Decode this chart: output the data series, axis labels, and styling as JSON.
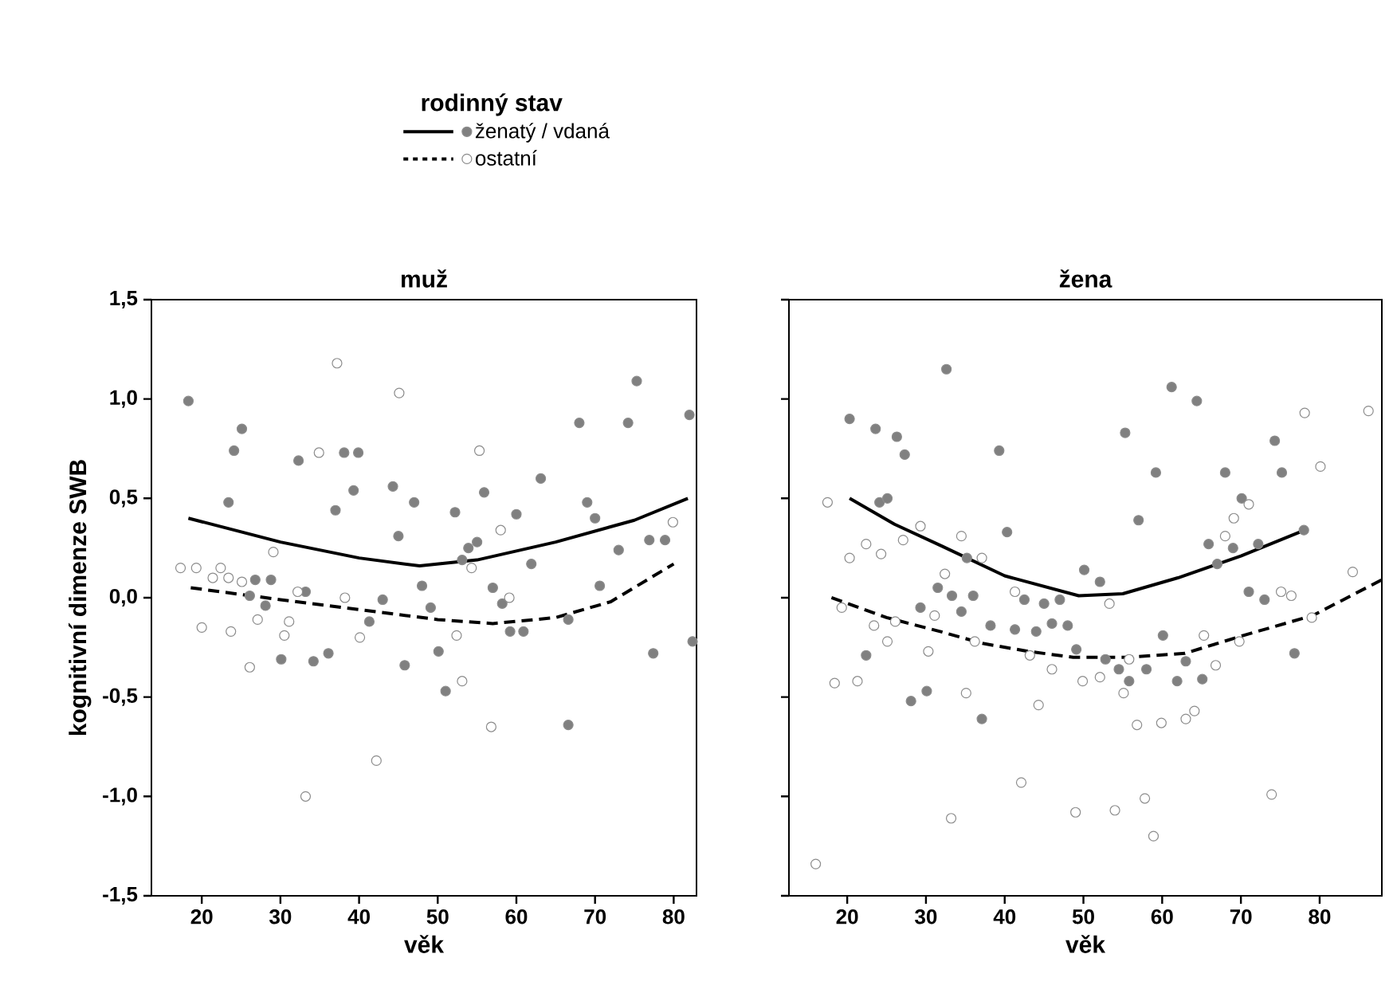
{
  "chart_data": [
    {
      "type": "scatter",
      "title": "muž",
      "xlabel": "věk",
      "ylabel": "kognitivní dimenze SWB",
      "legend_title": "rodinný stav",
      "legend": "top",
      "xlim": [
        13.6,
        82.9
      ],
      "ylim": [
        -1.5,
        1.5
      ],
      "xticks": [
        20,
        30,
        40,
        50,
        60,
        70,
        80
      ],
      "yticks": [
        {
          "value": -1.5,
          "label": "-1,5"
        },
        {
          "value": -1.0,
          "label": "-1,0"
        },
        {
          "value": -0.5,
          "label": "-0,5"
        },
        {
          "value": 0.0,
          "label": "0,0"
        },
        {
          "value": 0.5,
          "label": "0,5"
        },
        {
          "value": 1.0,
          "label": "1,0"
        },
        {
          "value": 1.5,
          "label": "1,5"
        }
      ],
      "series": [
        {
          "name": "ženatý / vdaná",
          "type": "scatter",
          "marker": "circle",
          "color": "#808080",
          "x": [
            18.3,
            25.1,
            24.1,
            32.3,
            38.1,
            39.9,
            39.3,
            23.4,
            37.0,
            44.3,
            47.0,
            52.2,
            55.9,
            63.1,
            60.0,
            68.0,
            74.2,
            75.3,
            82.0,
            69.0,
            70.0,
            45.0,
            55.0,
            53.9,
            53.1,
            61.9,
            73.0,
            76.9,
            78.9,
            26.8,
            28.8,
            26.1,
            28.1,
            33.2,
            43.0,
            41.3,
            48.0,
            49.1,
            57.0,
            58.2,
            59.2,
            60.9,
            70.6,
            66.6,
            82.4,
            30.1,
            34.2,
            36.1,
            45.8,
            50.1,
            51.0,
            66.6,
            77.4
          ],
          "values": [
            0.99,
            0.85,
            0.74,
            0.69,
            0.73,
            0.73,
            0.54,
            0.48,
            0.44,
            0.56,
            0.48,
            0.43,
            0.53,
            0.6,
            0.42,
            0.88,
            0.88,
            1.09,
            0.92,
            0.48,
            0.4,
            0.31,
            0.28,
            0.25,
            0.19,
            0.17,
            0.24,
            0.29,
            0.29,
            0.09,
            0.09,
            0.01,
            -0.04,
            0.03,
            -0.01,
            -0.12,
            0.06,
            -0.05,
            0.05,
            -0.03,
            -0.17,
            -0.17,
            0.06,
            -0.11,
            -0.22,
            -0.31,
            -0.32,
            -0.28,
            -0.34,
            -0.27,
            -0.47,
            -0.64,
            -0.28
          ]
        },
        {
          "name": "ostatní",
          "type": "scatter",
          "marker": "circle",
          "color": "#ffffff",
          "x": [
            37.2,
            45.1,
            34.9,
            55.3,
            58.0,
            79.9,
            29.1,
            17.3,
            19.3,
            22.4,
            21.4,
            23.4,
            25.1,
            38.2,
            32.2,
            54.3,
            59.1,
            20.0,
            23.7,
            27.1,
            31.1,
            30.5,
            40.1,
            52.4,
            26.1,
            53.1,
            56.8,
            42.2,
            33.2
          ],
          "values": [
            1.18,
            1.03,
            0.73,
            0.74,
            0.34,
            0.38,
            0.23,
            0.15,
            0.15,
            0.15,
            0.1,
            0.1,
            0.08,
            0.0,
            0.03,
            0.15,
            0.0,
            -0.15,
            -0.17,
            -0.11,
            -0.12,
            -0.19,
            -0.2,
            -0.19,
            -0.35,
            -0.42,
            -0.65,
            -0.82,
            -1.0
          ]
        },
        {
          "type": "line",
          "line_style": "solid",
          "marker": "none",
          "color": "#000000",
          "x": [
            18.3,
            30,
            40,
            47.7,
            55,
            65,
            75,
            81.8
          ],
          "values": [
            0.4,
            0.28,
            0.2,
            0.16,
            0.19,
            0.28,
            0.39,
            0.5
          ]
        },
        {
          "type": "line",
          "line_style": "dashed",
          "marker": "none",
          "color": "#000000",
          "x": [
            18.6,
            30,
            40,
            50,
            57,
            65,
            72,
            80
          ],
          "values": [
            0.05,
            -0.01,
            -0.06,
            -0.11,
            -0.13,
            -0.1,
            -0.02,
            0.17
          ]
        }
      ]
    },
    {
      "type": "scatter",
      "title": "žena",
      "xlabel": "věk",
      "tick_labels": "x",
      "xlim": [
        12.6,
        87.9
      ],
      "ylim": [
        -1.5,
        1.5
      ],
      "xticks": [
        20,
        30,
        40,
        50,
        60,
        70,
        80
      ],
      "yticks": [
        {
          "value": -1.5,
          "label": null
        },
        {
          "value": -1.0,
          "label": null
        },
        {
          "value": -0.5,
          "label": null
        },
        {
          "value": 0.0,
          "label": null
        },
        {
          "value": 0.5,
          "label": null
        },
        {
          "value": 1.0,
          "label": null
        },
        {
          "value": 1.5,
          "label": null
        }
      ],
      "series": [
        {
          "type": "scatter",
          "marker": "circle",
          "color": "#808080",
          "x": [
            32.6,
            61.2,
            64.4,
            20.3,
            23.6,
            26.3,
            27.3,
            39.3,
            55.3,
            59.2,
            74.3,
            68.0,
            75.2,
            70.1,
            24.1,
            25.1,
            57.0,
            40.3,
            78.0,
            65.9,
            69.0,
            72.2,
            67.0,
            35.2,
            50.1,
            52.1,
            31.5,
            33.3,
            36.0,
            42.5,
            45.0,
            47.0,
            71.0,
            73.0,
            29.3,
            34.5,
            38.2,
            41.3,
            44.0,
            46.0,
            48.0,
            60.1,
            49.1,
            22.4,
            28.1,
            30.1,
            37.1,
            52.8,
            54.5,
            55.8,
            58.0,
            61.9,
            63.0,
            65.1,
            76.8
          ],
          "values": [
            1.15,
            1.06,
            0.99,
            0.9,
            0.85,
            0.81,
            0.72,
            0.74,
            0.83,
            0.63,
            0.79,
            0.63,
            0.63,
            0.5,
            0.48,
            0.5,
            0.39,
            0.33,
            0.34,
            0.27,
            0.25,
            0.27,
            0.17,
            0.2,
            0.14,
            0.08,
            0.05,
            0.01,
            0.01,
            -0.01,
            -0.03,
            -0.01,
            0.03,
            -0.01,
            -0.05,
            -0.07,
            -0.14,
            -0.16,
            -0.17,
            -0.13,
            -0.14,
            -0.19,
            -0.26,
            -0.29,
            -0.52,
            -0.47,
            -0.61,
            -0.31,
            -0.36,
            -0.42,
            -0.36,
            -0.42,
            -0.32,
            -0.41,
            -0.28
          ]
        },
        {
          "type": "scatter",
          "marker": "circle",
          "color": "#ffffff",
          "x": [
            17.5,
            86.2,
            78.1,
            80.1,
            71.0,
            69.1,
            68.0,
            29.3,
            34.5,
            22.4,
            20.3,
            24.3,
            27.1,
            37.1,
            32.4,
            84.2,
            75.1,
            76.4,
            53.3,
            19.3,
            23.4,
            26.1,
            31.1,
            65.3,
            79.0,
            41.3,
            25.1,
            30.3,
            18.4,
            21.3,
            35.1,
            36.2,
            43.2,
            46.0,
            44.3,
            49.9,
            52.1,
            55.1,
            55.8,
            56.8,
            59.9,
            63.0,
            64.1,
            66.8,
            69.8,
            42.1,
            33.2,
            49.0,
            54.0,
            57.8,
            58.9,
            73.9,
            16.0
          ],
          "values": [
            0.48,
            0.94,
            0.93,
            0.66,
            0.47,
            0.4,
            0.31,
            0.36,
            0.31,
            0.27,
            0.2,
            0.22,
            0.29,
            0.2,
            0.12,
            0.13,
            0.03,
            0.01,
            -0.03,
            -0.05,
            -0.14,
            -0.12,
            -0.09,
            -0.19,
            -0.1,
            0.03,
            -0.22,
            -0.27,
            -0.43,
            -0.42,
            -0.48,
            -0.22,
            -0.29,
            -0.36,
            -0.54,
            -0.42,
            -0.4,
            -0.48,
            -0.31,
            -0.64,
            -0.63,
            -0.61,
            -0.57,
            -0.34,
            -0.22,
            -0.93,
            -1.11,
            -1.08,
            -1.07,
            -1.01,
            -1.2,
            -0.99,
            -1.34
          ]
        },
        {
          "type": "line",
          "line_style": "solid",
          "marker": "none",
          "color": "#000000",
          "x": [
            20.3,
            26,
            32,
            40,
            49.4,
            55,
            62,
            70,
            78.1
          ],
          "values": [
            0.5,
            0.37,
            0.26,
            0.11,
            0.01,
            0.02,
            0.1,
            0.21,
            0.34
          ]
        },
        {
          "type": "line",
          "line_style": "dashed",
          "marker": "none",
          "color": "#000000",
          "x": [
            18.0,
            25,
            31.8,
            37.2,
            43,
            48.7,
            55.5,
            62.9,
            70.3,
            79.1,
            87.9
          ],
          "values": [
            0.0,
            -0.1,
            -0.17,
            -0.23,
            -0.27,
            -0.3,
            -0.3,
            -0.28,
            -0.19,
            -0.09,
            0.09
          ]
        }
      ]
    }
  ]
}
